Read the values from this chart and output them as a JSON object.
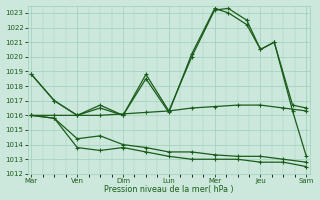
{
  "background_color": "#cce8dc",
  "grid_color": "#9ecfb8",
  "line_color": "#1a5c1a",
  "xlabel": "Pression niveau de la mer( hPa )",
  "ylim": [
    1012,
    1023.5
  ],
  "yticks": [
    1012,
    1013,
    1014,
    1015,
    1016,
    1017,
    1018,
    1019,
    1020,
    1021,
    1022,
    1023
  ],
  "x_labels": [
    "Mar",
    "Ven",
    "Dim",
    "Lun",
    "Mer",
    "Jeu",
    "Sam"
  ],
  "x_positions": [
    0,
    1,
    2,
    3,
    4,
    5,
    6
  ],
  "series": [
    {
      "x": [
        0,
        0.5,
        1,
        1.5,
        2,
        2.5,
        3,
        3.5,
        4,
        4.3,
        4.7,
        5,
        5.3,
        5.7,
        6
      ],
      "y": [
        1018.8,
        1017.0,
        1016.0,
        1016.7,
        1016.0,
        1018.8,
        1016.3,
        1020.0,
        1023.2,
        1023.3,
        1022.5,
        1020.5,
        1021.0,
        1016.7,
        1016.5
      ],
      "marker": "+"
    },
    {
      "x": [
        0,
        0.5,
        1,
        1.5,
        2,
        2.5,
        3,
        3.5,
        4,
        4.3,
        4.7,
        5,
        5.3,
        5.7,
        6
      ],
      "y": [
        1018.8,
        1017.0,
        1016.0,
        1016.5,
        1016.0,
        1018.5,
        1016.2,
        1020.2,
        1023.3,
        1023.0,
        1022.2,
        1020.5,
        1021.0,
        1016.3,
        1013.2
      ],
      "marker": "+"
    },
    {
      "x": [
        0,
        0.5,
        1,
        1.5,
        2,
        2.5,
        3,
        3.5,
        4,
        4.5,
        5,
        5.5,
        6
      ],
      "y": [
        1016.0,
        1016.0,
        1016.0,
        1016.0,
        1016.1,
        1016.2,
        1016.3,
        1016.5,
        1016.6,
        1016.7,
        1016.7,
        1016.5,
        1016.3
      ],
      "marker": "+"
    },
    {
      "x": [
        0,
        0.5,
        1,
        1.5,
        2,
        2.5,
        3,
        3.5,
        4,
        4.5,
        5,
        5.5,
        6
      ],
      "y": [
        1016.0,
        1015.8,
        1014.4,
        1014.6,
        1014.0,
        1013.8,
        1013.5,
        1013.5,
        1013.3,
        1013.2,
        1013.2,
        1013.0,
        1012.8
      ],
      "marker": "+"
    },
    {
      "x": [
        0,
        0.5,
        1,
        1.5,
        2,
        2.5,
        3,
        3.5,
        4,
        4.5,
        5,
        5.5,
        6
      ],
      "y": [
        1016.0,
        1015.8,
        1013.8,
        1013.6,
        1013.8,
        1013.5,
        1013.2,
        1013.0,
        1013.0,
        1013.0,
        1012.8,
        1012.8,
        1012.5
      ],
      "marker": "+"
    }
  ]
}
